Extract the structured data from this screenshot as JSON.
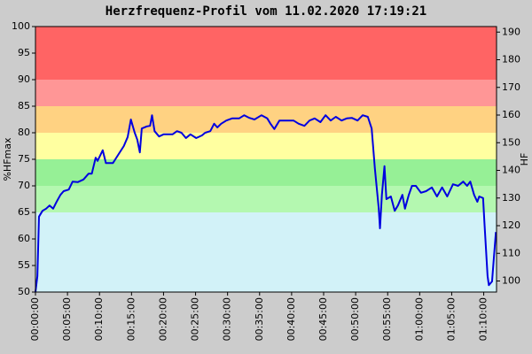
{
  "chart_data": {
    "type": "line",
    "title": "Herzfrequenz-Profil vom 11.02.2020 17:19:21",
    "ylabel": "%HFmax",
    "y2label": "HF",
    "x": [
      0,
      0.3,
      0.55,
      1.1,
      1.66,
      2.2,
      2.76,
      3.3,
      3.9,
      4.4,
      5.2,
      5.8,
      6.6,
      7.5,
      8.3,
      8.8,
      9.4,
      9.7,
      10.5,
      11.0,
      12.1,
      13.0,
      13.8,
      14.4,
      14.9,
      15.5,
      15.9,
      16.3,
      16.6,
      17.4,
      17.9,
      18.2,
      18.6,
      19.3,
      20.0,
      21.4,
      22.1,
      22.8,
      23.5,
      24.2,
      25.1,
      26.0,
      26.5,
      27.3,
      27.9,
      28.4,
      29.0,
      29.8,
      30.7,
      31.8,
      32.6,
      33.4,
      34.2,
      35.3,
      36.2,
      36.7,
      37.3,
      38.1,
      39.2,
      40.3,
      41.1,
      42.0,
      42.8,
      43.6,
      44.5,
      45.3,
      46.1,
      46.9,
      47.8,
      48.6,
      49.4,
      50.3,
      51.1,
      51.9,
      52.5,
      53.0,
      53.6,
      53.8,
      54.1,
      54.5,
      54.8,
      55.5,
      56.1,
      56.6,
      57.3,
      57.7,
      58.3,
      58.8,
      59.4,
      60.2,
      61.0,
      61.9,
      62.7,
      63.5,
      64.3,
      65.2,
      66.0,
      66.8,
      67.4,
      67.9,
      68.5,
      69.0,
      69.3,
      69.9,
      70.1,
      70.6,
      70.8,
      71.3,
      71.6,
      71.9
    ],
    "series": [
      {
        "color": "#0000e0",
        "values": [
          50,
          53,
          64.2,
          65.3,
          65.7,
          66.3,
          65.7,
          67,
          68.3,
          69,
          69.3,
          70.8,
          70.7,
          71.2,
          72.3,
          72.3,
          75.3,
          74.7,
          76.7,
          74.3,
          74.3,
          76,
          77.5,
          79.2,
          82.5,
          80,
          78.7,
          76.3,
          80.8,
          81.2,
          81.3,
          83.3,
          80.3,
          79.3,
          79.7,
          79.7,
          80.3,
          80,
          79,
          79.7,
          79,
          79.5,
          80,
          80.3,
          81.7,
          81,
          81.7,
          82.3,
          82.7,
          82.7,
          83.3,
          82.8,
          82.5,
          83.3,
          82.7,
          81.7,
          80.7,
          82.3,
          82.3,
          82.3,
          81.7,
          81.3,
          82.3,
          82.7,
          82,
          83.3,
          82.3,
          83,
          82.3,
          82.7,
          82.8,
          82.3,
          83.3,
          83,
          80.8,
          73.3,
          65.8,
          62,
          68.3,
          73.7,
          67.5,
          68,
          65.3,
          66.3,
          68.3,
          65.7,
          68.3,
          70,
          70,
          68.7,
          69,
          69.7,
          68,
          69.7,
          68,
          70.3,
          70,
          70.8,
          70,
          70.8,
          68.3,
          67,
          68,
          67.7,
          63.3,
          53,
          51.3,
          52,
          56.7,
          61.3
        ]
      }
    ],
    "xlim": [
      0,
      72
    ],
    "xticks": [
      {
        "value": 0,
        "label": "00:00:00"
      },
      {
        "value": 5,
        "label": "00:05:00"
      },
      {
        "value": 10,
        "label": "00:10:00"
      },
      {
        "value": 15,
        "label": "00:15:00"
      },
      {
        "value": 20,
        "label": "00:20:00"
      },
      {
        "value": 25,
        "label": "00:25:00"
      },
      {
        "value": 30,
        "label": "00:30:00"
      },
      {
        "value": 35,
        "label": "00:35:00"
      },
      {
        "value": 40,
        "label": "00:40:00"
      },
      {
        "value": 45,
        "label": "00:45:00"
      },
      {
        "value": 50,
        "label": "00:50:00"
      },
      {
        "value": 55,
        "label": "00:55:00"
      },
      {
        "value": 60,
        "label": "01:00:00"
      },
      {
        "value": 65,
        "label": "01:05:00"
      },
      {
        "value": 70,
        "label": "01:10:00"
      }
    ],
    "ylim": [
      50,
      100
    ],
    "yticks": [
      50,
      55,
      60,
      65,
      70,
      75,
      80,
      85,
      90,
      95,
      100
    ],
    "y2lim": [
      96,
      192
    ],
    "y2ticks": [
      100,
      110,
      120,
      130,
      140,
      150,
      160,
      170,
      180,
      190
    ],
    "zones": [
      {
        "from": 50,
        "to": 65,
        "color": "#d2f2f8"
      },
      {
        "from": 65,
        "to": 70,
        "color": "#b4f8b0"
      },
      {
        "from": 70,
        "to": 75,
        "color": "#96f096"
      },
      {
        "from": 75,
        "to": 80,
        "color": "#ffffa0"
      },
      {
        "from": 80,
        "to": 85,
        "color": "#ffd282"
      },
      {
        "from": 85,
        "to": 90,
        "color": "#ff9696"
      },
      {
        "from": 90,
        "to": 100,
        "color": "#ff6464"
      }
    ]
  }
}
